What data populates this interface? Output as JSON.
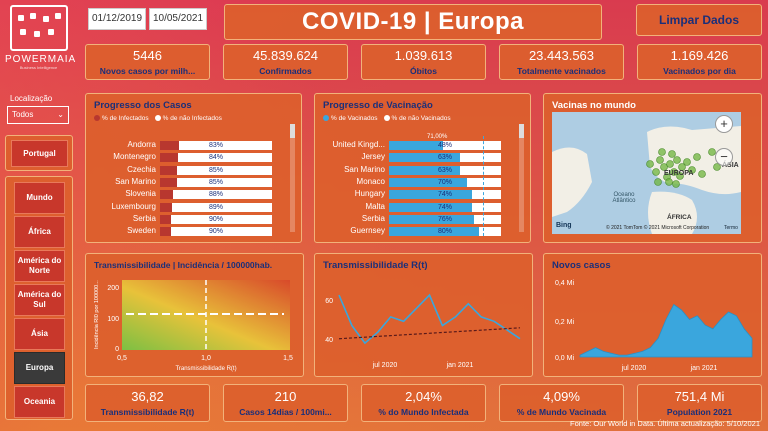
{
  "brand": {
    "name": "POWERMAIA",
    "tagline": "Business Intelligence"
  },
  "dates": {
    "start": "01/12/2019",
    "end": "10/05/2021"
  },
  "title": "COVID-19 | Europa",
  "clear_button": "Limpar Dados",
  "kpis_top": [
    {
      "value": "5446",
      "label": "Novos casos por milh..."
    },
    {
      "value": "45.839.624",
      "label": "Confirmados"
    },
    {
      "value": "1.039.613",
      "label": "Óbitos"
    },
    {
      "value": "23.443.563",
      "label": "Totalmente vacinados"
    },
    {
      "value": "1.169.426",
      "label": "Vacinados por dia"
    }
  ],
  "filter": {
    "label": "Localização",
    "value": "Todos"
  },
  "portugal": "Portugal",
  "regions": [
    "Mundo",
    "África",
    "América do Norte",
    "América do Sul",
    "Ásia",
    "Europa",
    "Oceania"
  ],
  "active_region": "Europa",
  "cases_progress": {
    "title": "Progresso dos Casos",
    "legend": [
      "% de Infectados",
      "% de não Infectados"
    ],
    "colors": {
      "infected": "#b8372f",
      "not_infected": "#ffffff"
    },
    "rows": [
      {
        "country": "Andorra",
        "pct": "83%",
        "value": 83
      },
      {
        "country": "Montenegro",
        "pct": "84%",
        "value": 84
      },
      {
        "country": "Czechia",
        "pct": "85%",
        "value": 85
      },
      {
        "country": "San Marino",
        "pct": "85%",
        "value": 85
      },
      {
        "country": "Slovenia",
        "pct": "88%",
        "value": 88
      },
      {
        "country": "Luxembourg",
        "pct": "89%",
        "value": 89
      },
      {
        "country": "Serbia",
        "pct": "90%",
        "value": 90
      },
      {
        "country": "Sweden",
        "pct": "90%",
        "value": 90
      }
    ]
  },
  "vacc_progress": {
    "title": "Progresso de Vacinação",
    "legend": [
      "% de Vacinados",
      "% de não Vacinados"
    ],
    "colors": {
      "vaccinated": "#3aa6dd",
      "not_vaccinated": "#ffffff"
    },
    "rows": [
      {
        "country": "United Kingd...",
        "pct": "48%",
        "value": 48,
        "note": "71,00%"
      },
      {
        "country": "Jersey",
        "pct": "63%",
        "value": 63
      },
      {
        "country": "San Marino",
        "pct": "63%",
        "value": 63
      },
      {
        "country": "Monaco",
        "pct": "70%",
        "value": 70
      },
      {
        "country": "Hungary",
        "pct": "74%",
        "value": 74
      },
      {
        "country": "Malta",
        "pct": "74%",
        "value": 74
      },
      {
        "country": "Serbia",
        "pct": "76%",
        "value": 76
      },
      {
        "country": "Guernsey",
        "pct": "80%",
        "value": 80
      }
    ]
  },
  "map": {
    "title": "Vacinas no mundo",
    "labels": {
      "europe": "EUROPA",
      "asia": "ÁSIA",
      "ocean": "Oceano Atlântico",
      "africa": "ÁFRICA"
    },
    "attribution": "© 2021 TomTom © 2021 Microsoft Corporation",
    "terms": "Termo",
    "bing": "Bing"
  },
  "heatmap": {
    "title": "Transmissibilidade | Incidência / 100000hab.",
    "ylabel": "Incidência RI0 por 100000...",
    "xlabel": "Transmissibilidade R(t)",
    "yticks": [
      "200",
      "100",
      "0"
    ],
    "xticks": [
      "0,5",
      "1,0",
      "1,5"
    ]
  },
  "chart_data": [
    {
      "type": "line",
      "title": "Transmissibilidade R(t)",
      "x": [
        "2020-03",
        "2020-04",
        "2020-05",
        "2020-06",
        "2020-07",
        "2020-08",
        "2020-09",
        "2020-10",
        "2020-11",
        "2020-12",
        "2021-01",
        "2021-02",
        "2021-03",
        "2021-04",
        "2021-05"
      ],
      "xticks": [
        "jul 2020",
        "jan 2021"
      ],
      "yticks": [
        "60",
        "40"
      ],
      "series": [
        {
          "values": [
            62,
            48,
            40,
            45,
            52,
            50,
            56,
            62,
            48,
            52,
            58,
            52,
            50,
            46,
            42
          ]
        }
      ],
      "trend": [
        42,
        47
      ],
      "ylim": [
        35,
        68
      ]
    },
    {
      "type": "area",
      "title": "Novos casos",
      "yticks": [
        "0,4 Mi",
        "0,2 Mi",
        "0,0 Mi"
      ],
      "xticks": [
        "jul 2020",
        "jan 2021"
      ],
      "ylim": [
        0,
        0.4
      ],
      "series": [
        {
          "values": [
            0.01,
            0.03,
            0.05,
            0.03,
            0.02,
            0.01,
            0.01,
            0.02,
            0.03,
            0.05,
            0.1,
            0.2,
            0.28,
            0.25,
            0.2,
            0.22,
            0.17,
            0.15,
            0.2,
            0.24,
            0.22,
            0.15,
            0.1
          ]
        }
      ]
    }
  ],
  "kpis_bottom": [
    {
      "value": "36,82",
      "label": "Transmissibilidade R(t)"
    },
    {
      "value": "210",
      "label": "Casos 14dias / 100mi..."
    },
    {
      "value": "2,04%",
      "label": "% do Mundo Infectada"
    },
    {
      "value": "4,09%",
      "label": "% de Mundo Vacinada"
    },
    {
      "value": "751,4 Mi",
      "label": "Population 2021"
    }
  ],
  "footer": "Fonte: Our World in Data. Última actualização: 5/10/2021"
}
